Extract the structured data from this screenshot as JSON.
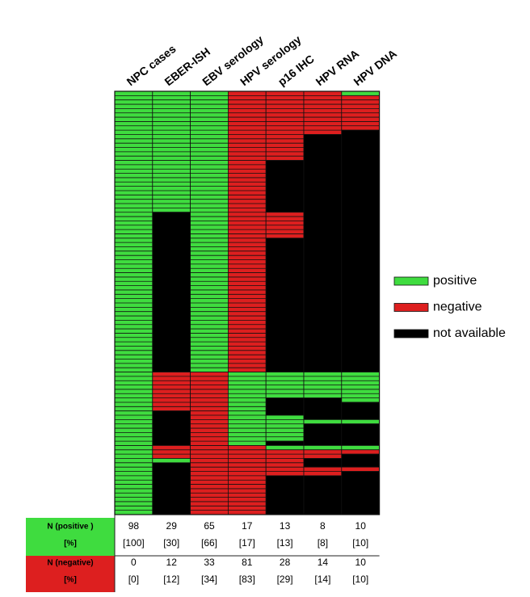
{
  "chart_data": {
    "type": "heatmap",
    "legend": [
      {
        "label": "positive",
        "color": "#3fdc3f"
      },
      {
        "label": "negative",
        "color": "#dd1f1f"
      },
      {
        "label": "not available",
        "color": "#000000"
      }
    ],
    "columns": [
      {
        "name": "NPC cases",
        "segments": [
          {
            "status": "positive",
            "rows": 98
          }
        ]
      },
      {
        "name": "EBER-ISH",
        "segments": [
          {
            "status": "positive",
            "rows": 28
          },
          {
            "status": "not available",
            "rows": 37
          },
          {
            "status": "negative",
            "rows": 9
          },
          {
            "status": "not available",
            "rows": 8
          },
          {
            "status": "negative",
            "rows": 3
          },
          {
            "status": "positive",
            "rows": 1
          },
          {
            "status": "not available",
            "rows": 12
          }
        ]
      },
      {
        "name": "EBV serology",
        "segments": [
          {
            "status": "positive",
            "rows": 65
          },
          {
            "status": "negative",
            "rows": 33
          }
        ]
      },
      {
        "name": "HPV serology",
        "segments": [
          {
            "status": "negative",
            "rows": 65
          },
          {
            "status": "positive",
            "rows": 17
          },
          {
            "status": "negative",
            "rows": 16
          }
        ]
      },
      {
        "name": "p16 IHC",
        "segments": [
          {
            "status": "negative",
            "rows": 16
          },
          {
            "status": "not available",
            "rows": 12
          },
          {
            "status": "negative",
            "rows": 6
          },
          {
            "status": "not available",
            "rows": 31
          },
          {
            "status": "positive",
            "rows": 6
          },
          {
            "status": "not available",
            "rows": 4
          },
          {
            "status": "positive",
            "rows": 6
          },
          {
            "status": "not available",
            "rows": 1
          },
          {
            "status": "positive",
            "rows": 1
          },
          {
            "status": "negative",
            "rows": 6
          },
          {
            "status": "not available",
            "rows": 9
          }
        ]
      },
      {
        "name": "HPV RNA",
        "segments": [
          {
            "status": "negative",
            "rows": 10
          },
          {
            "status": "not available",
            "rows": 55
          },
          {
            "status": "positive",
            "rows": 6
          },
          {
            "status": "not available",
            "rows": 5
          },
          {
            "status": "positive",
            "rows": 1
          },
          {
            "status": "not available",
            "rows": 5
          },
          {
            "status": "positive",
            "rows": 1
          },
          {
            "status": "negative",
            "rows": 2
          },
          {
            "status": "not available",
            "rows": 2
          },
          {
            "status": "negative",
            "rows": 2
          },
          {
            "status": "not available",
            "rows": 9
          }
        ]
      },
      {
        "name": "HPV DNA",
        "segments": [
          {
            "status": "positive",
            "rows": 1
          },
          {
            "status": "negative",
            "rows": 8
          },
          {
            "status": "not available",
            "rows": 56
          },
          {
            "status": "positive",
            "rows": 7
          },
          {
            "status": "not available",
            "rows": 4
          },
          {
            "status": "positive",
            "rows": 1
          },
          {
            "status": "not available",
            "rows": 5
          },
          {
            "status": "positive",
            "rows": 1
          },
          {
            "status": "negative",
            "rows": 1
          },
          {
            "status": "not available",
            "rows": 3
          },
          {
            "status": "negative",
            "rows": 1
          },
          {
            "status": "not available",
            "rows": 10
          }
        ]
      }
    ],
    "table": {
      "rows": [
        {
          "label": "N (positive )",
          "cells": [
            98,
            29,
            65,
            17,
            13,
            8,
            10
          ]
        },
        {
          "label": "[%]",
          "cells": [
            "[100]",
            "[30]",
            "[66]",
            "[17]",
            "[13]",
            "[8]",
            "[10]"
          ]
        },
        {
          "label": "N (negative)",
          "cells": [
            0,
            12,
            33,
            81,
            28,
            14,
            10
          ]
        },
        {
          "label": "[%]",
          "cells": [
            "[0]",
            "[12]",
            "[34]",
            "[83]",
            "[29]",
            "[14]",
            "[10]"
          ]
        }
      ]
    }
  }
}
